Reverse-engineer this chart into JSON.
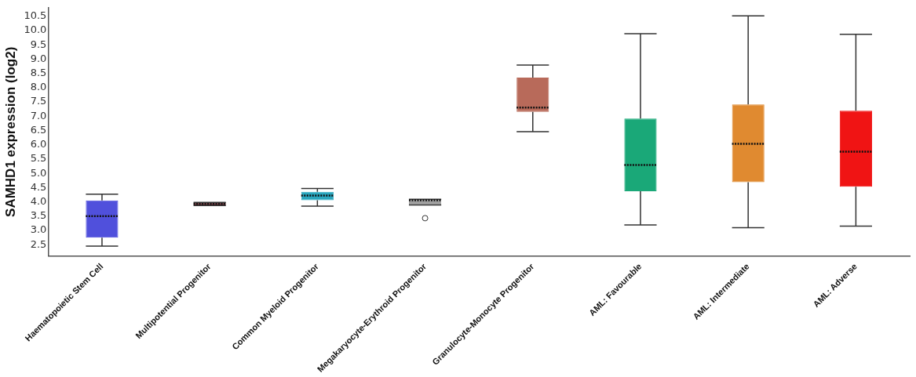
{
  "chart_data": {
    "type": "box",
    "ylabel": "SAMHD1 expression (log2)",
    "categories": [
      "Haematopoietic Stem Cell",
      "Multipotential Progenitor",
      "Common Myeloid Progenitor",
      "Megakaryocyte-Erythroid Progenitor",
      "Granulocyte-Monocyte Progenitor",
      "AML: Favourable",
      "AML: Intermediate",
      "AML: Adverse"
    ],
    "colors": [
      "#5050dc",
      "#6a2a30",
      "#2aa6be",
      "#a0a0a0",
      "#b86a5a",
      "#1aa878",
      "#e08a30",
      "#f01414"
    ],
    "boxes": [
      {
        "low": 2.45,
        "q1": 2.75,
        "median": 3.5,
        "q3": 4.05,
        "high": 4.27
      },
      {
        "low": 3.87,
        "q1": 3.87,
        "median": 3.93,
        "q3": 3.98,
        "high": 3.98
      },
      {
        "low": 3.85,
        "q1": 4.06,
        "median": 4.22,
        "q3": 4.35,
        "high": 4.47
      },
      {
        "low": 3.89,
        "q1": 3.89,
        "median": 4.06,
        "q3": 4.09,
        "high": 4.09,
        "outliers": [
          3.43
        ]
      },
      {
        "low": 6.46,
        "q1": 7.15,
        "median": 7.3,
        "q3": 8.35,
        "high": 8.79
      },
      {
        "low": 3.19,
        "q1": 4.37,
        "median": 5.29,
        "q3": 6.92,
        "high": 9.89
      },
      {
        "low": 3.1,
        "q1": 4.69,
        "median": 6.03,
        "q3": 7.41,
        "high": 10.51
      },
      {
        "low": 3.15,
        "q1": 4.53,
        "median": 5.76,
        "q3": 7.19,
        "high": 9.87
      }
    ],
    "ylim": [
      2.1,
      10.8
    ],
    "yticks": [
      {
        "value": 2.5,
        "label": "2.5"
      },
      {
        "value": 3,
        "label": "3.0"
      },
      {
        "value": 3.5,
        "label": "3.5"
      },
      {
        "value": 4,
        "label": "4.0"
      },
      {
        "value": 4.5,
        "label": "4.5"
      },
      {
        "value": 5,
        "label": "5.0"
      },
      {
        "value": 5.5,
        "label": "5.5"
      },
      {
        "value": 6,
        "label": "6.0"
      },
      {
        "value": 6.5,
        "label": "6.5"
      },
      {
        "value": 7,
        "label": "7.0"
      },
      {
        "value": 7.5,
        "label": "7.5"
      },
      {
        "value": 8,
        "label": "8.0"
      },
      {
        "value": 8.5,
        "label": "8.5"
      },
      {
        "value": 9,
        "label": "9.0"
      },
      {
        "value": 9.5,
        "label": "9.5"
      },
      {
        "value": 10,
        "label": "10.0"
      },
      {
        "value": 10.5,
        "label": "10.5"
      }
    ]
  }
}
